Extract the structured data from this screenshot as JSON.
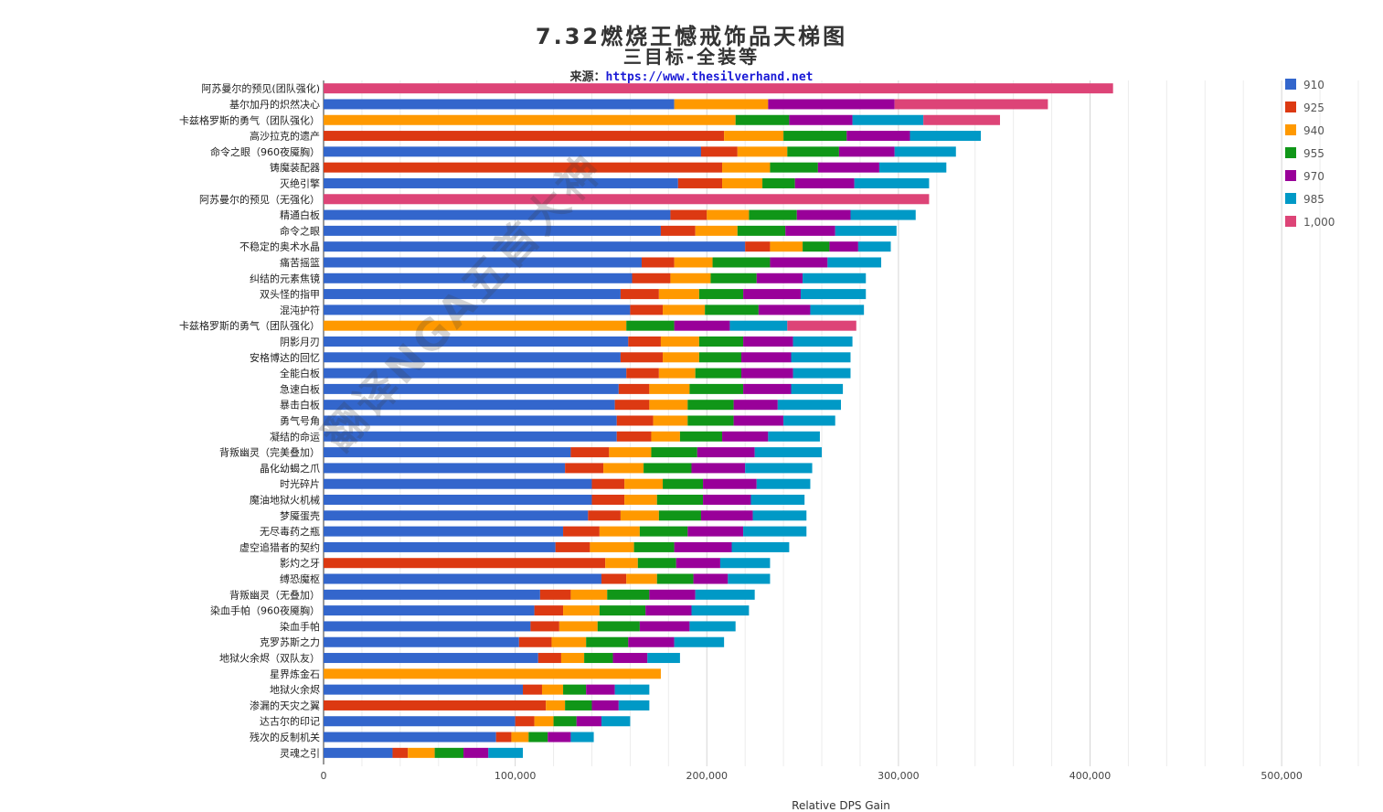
{
  "header": {
    "title": "7.32燃烧王憾戒饰品天梯图",
    "subtitle": "三目标-全装等",
    "source_label": "来源：",
    "source_url": "https://www.thesilverhand.net"
  },
  "watermark": "翻译NGA五首大神",
  "colors": {
    "910": "#3366cc",
    "925": "#dc3912",
    "940": "#ff9900",
    "955": "#109618",
    "970": "#990099",
    "985": "#0099c6",
    "1,000": "#dd4477"
  },
  "chart_data": {
    "type": "bar",
    "orientation": "horizontal",
    "stacked": true,
    "xlabel": "Relative DPS Gain",
    "xlim": [
      0,
      540000
    ],
    "x_ticks": [
      "0",
      "100,000",
      "200,000",
      "300,000",
      "400,000",
      "500,000"
    ],
    "x_tick_values": [
      0,
      100000,
      200000,
      300000,
      400000,
      500000
    ],
    "grid": true,
    "legend_position": "right",
    "series_names": [
      "910",
      "925",
      "940",
      "955",
      "970",
      "985",
      "1,000"
    ],
    "categories": [
      "阿苏曼尔的预见(团队强化)",
      "基尔加丹的炽然决心",
      "卡兹格罗斯的勇气（团队强化）",
      "高沙拉克的遗产",
      "命令之眼（960夜魇胸）",
      "铸魔装配器",
      "灭绝引擎",
      "阿苏曼尔的预见（无强化）",
      "精通白板",
      "命令之眼",
      "不稳定的奥术水晶",
      "痛苦摇篮",
      "纠结的元素焦镜",
      "双头怪的指甲",
      "混沌护符",
      "卡兹格罗斯的勇气（团队强化）",
      "阴影月刃",
      "安格博达的回忆",
      "全能白板",
      "急速白板",
      "暴击白板",
      "勇气号角",
      "凝结的命运",
      "背叛幽灵（完美叠加）",
      "晶化幼蝎之爪",
      "时光碎片",
      "魔油地狱火机械",
      "梦魇蛋壳",
      "无尽毒药之瓶",
      "虚空追猎者的契约",
      "影灼之牙",
      "缚恐魔枢",
      "背叛幽灵（无叠加）",
      "染血手帕（960夜魇胸）",
      "染血手帕",
      "克罗苏斯之力",
      "地狱火余烬（双队友）",
      "星界炼金石",
      "地狱火余烬",
      "渗漏的天灾之翼",
      "达古尔的印记",
      "残次的反制机关",
      "灵魂之引"
    ],
    "series": [
      {
        "name": "910",
        "values": [
          0,
          183000,
          0,
          0,
          197000,
          0,
          185000,
          0,
          181000,
          176000,
          220000,
          166000,
          161000,
          155000,
          160000,
          0,
          159000,
          155000,
          158000,
          154000,
          152000,
          153000,
          153000,
          129000,
          126000,
          140000,
          140000,
          138000,
          125000,
          121000,
          0,
          145000,
          113000,
          110000,
          108000,
          102000,
          112000,
          0,
          104000,
          0,
          100000,
          90000,
          36000
        ]
      },
      {
        "name": "925",
        "values": [
          0,
          0,
          0,
          209000,
          19000,
          208000,
          23000,
          0,
          19000,
          18000,
          13000,
          17000,
          20000,
          20000,
          17000,
          0,
          17000,
          22000,
          17000,
          16000,
          18000,
          19000,
          18000,
          20000,
          20000,
          17000,
          17000,
          17000,
          19000,
          18000,
          147000,
          13000,
          16000,
          15000,
          15000,
          17000,
          12000,
          0,
          10000,
          116000,
          10000,
          8000,
          8000
        ]
      },
      {
        "name": "940",
        "values": [
          0,
          49000,
          215000,
          31000,
          26000,
          25000,
          21000,
          0,
          22000,
          22000,
          17000,
          20000,
          21000,
          21000,
          22000,
          158000,
          20000,
          19000,
          19000,
          21000,
          20000,
          18000,
          15000,
          22000,
          21000,
          20000,
          17000,
          20000,
          21000,
          23000,
          17000,
          16000,
          19000,
          19000,
          20000,
          18000,
          12000,
          176000,
          11000,
          10000,
          10000,
          9000,
          14000
        ]
      },
      {
        "name": "955",
        "values": [
          0,
          0,
          28000,
          33000,
          27000,
          25000,
          17000,
          0,
          25000,
          25000,
          14000,
          30000,
          24000,
          23000,
          28000,
          25000,
          23000,
          22000,
          24000,
          28000,
          24000,
          24000,
          22000,
          24000,
          25000,
          21000,
          24000,
          22000,
          25000,
          21000,
          20000,
          19000,
          22000,
          24000,
          22000,
          22000,
          15000,
          0,
          12000,
          14000,
          12000,
          10000,
          15000
        ]
      },
      {
        "name": "970",
        "values": [
          0,
          66000,
          33000,
          33000,
          29000,
          32000,
          31000,
          0,
          28000,
          26000,
          15000,
          30000,
          24000,
          30000,
          27000,
          29000,
          26000,
          26000,
          27000,
          25000,
          23000,
          26000,
          24000,
          30000,
          28000,
          28000,
          25000,
          27000,
          29000,
          30000,
          23000,
          18000,
          24000,
          24000,
          26000,
          24000,
          18000,
          0,
          15000,
          14000,
          13000,
          12000,
          13000
        ]
      },
      {
        "name": "985",
        "values": [
          0,
          0,
          37000,
          37000,
          32000,
          35000,
          39000,
          0,
          34000,
          32000,
          17000,
          28000,
          33000,
          34000,
          28000,
          30000,
          31000,
          31000,
          30000,
          27000,
          33000,
          27000,
          27000,
          35000,
          35000,
          28000,
          28000,
          28000,
          33000,
          30000,
          26000,
          22000,
          31000,
          30000,
          24000,
          26000,
          17000,
          0,
          18000,
          16000,
          15000,
          12000,
          18000
        ]
      },
      {
        "name": "1,000",
        "values": [
          412000,
          80000,
          40000,
          0,
          0,
          0,
          0,
          316000,
          0,
          0,
          0,
          0,
          0,
          0,
          0,
          36000,
          0,
          0,
          0,
          0,
          0,
          0,
          0,
          0,
          0,
          0,
          0,
          0,
          0,
          0,
          0,
          0,
          0,
          0,
          0,
          0,
          0,
          0,
          0,
          0,
          0,
          0,
          0
        ]
      }
    ]
  }
}
